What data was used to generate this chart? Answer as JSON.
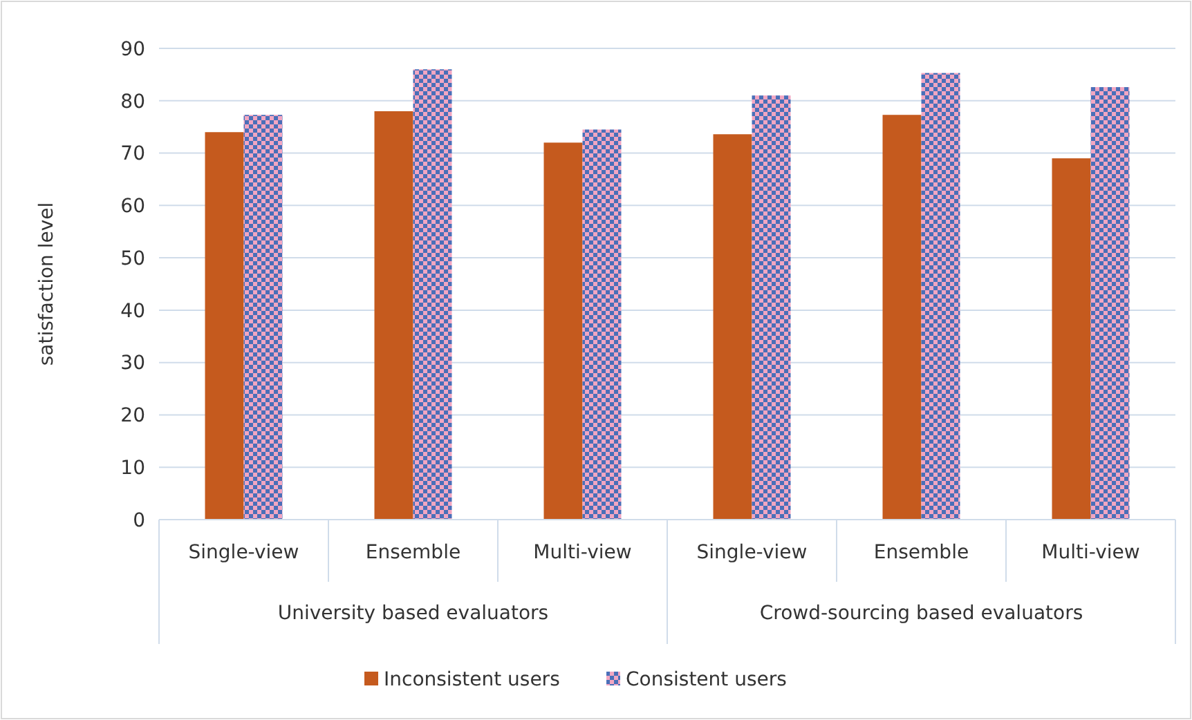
{
  "chart_data": {
    "type": "bar",
    "ylabel": "satisfaction level",
    "categories": [
      "Single-view",
      "Ensemble",
      "Multi-view",
      "Single-view",
      "Ensemble",
      "Multi-view"
    ],
    "series": [
      {
        "name": "Inconsistent users",
        "color": "#c55a1e",
        "values": [
          74,
          78,
          72,
          73.6,
          77.3,
          69
        ]
      },
      {
        "name": "Consistent users",
        "color": "#4a6fb8",
        "values": [
          77.3,
          86,
          74.5,
          81,
          85.3,
          82.6
        ]
      }
    ],
    "ylim": [
      0,
      90
    ],
    "yticks": [
      0,
      10,
      20,
      30,
      40,
      50,
      60,
      70,
      80,
      90
    ],
    "grid": "y",
    "legend": "bottom",
    "annotations": [
      "University based evaluators",
      "Crowd-sourcing based evaluators"
    ]
  }
}
